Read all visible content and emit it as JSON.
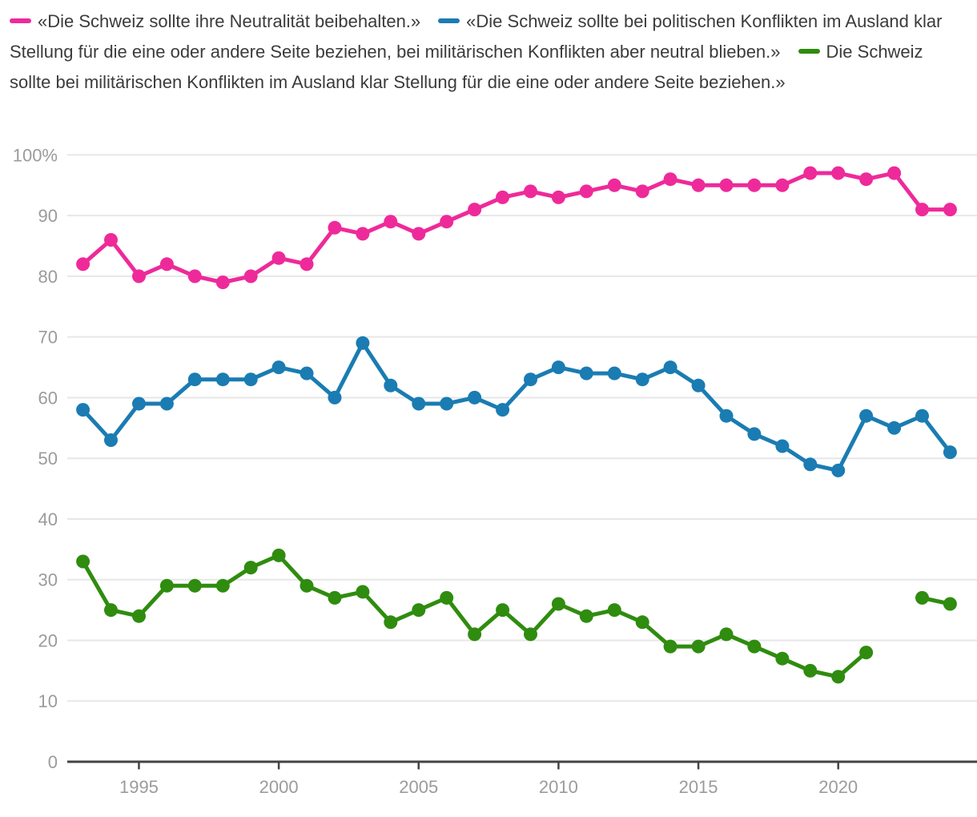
{
  "legend": {
    "items": [
      {
        "label": "«Die Schweiz sollte ihre Neutralität beibehalten.»",
        "color": "#ee2a9a"
      },
      {
        "label": "«Die Schweiz sollte bei politischen Konflikten im Ausland klar Stellung für die eine oder andere Seite beziehen, bei militärischen Konflikten aber neutral blieben.»",
        "color": "#1a7cb2"
      },
      {
        "label": "Die Schweiz sollte bei militärischen Konflikten im Ausland klar Stellung für die eine oder andere Seite beziehen.»",
        "color": "#2f8c0f"
      }
    ]
  },
  "chart_data": {
    "type": "line",
    "x": [
      1993,
      1994,
      1995,
      1996,
      1997,
      1998,
      1999,
      2000,
      2001,
      2002,
      2003,
      2004,
      2005,
      2006,
      2007,
      2008,
      2009,
      2010,
      2011,
      2012,
      2013,
      2014,
      2015,
      2016,
      2017,
      2018,
      2019,
      2020,
      2021,
      2022,
      2023,
      2024
    ],
    "series": [
      {
        "name": "«Die Schweiz sollte ihre Neutralität beibehalten.»",
        "color": "#ee2a9a",
        "values": [
          82,
          86,
          80,
          82,
          80,
          79,
          80,
          83,
          82,
          88,
          87,
          89,
          87,
          89,
          91,
          93,
          94,
          93,
          94,
          95,
          94,
          96,
          95,
          95,
          95,
          95,
          97,
          97,
          96,
          97,
          91,
          91
        ]
      },
      {
        "name": "«Die Schweiz sollte bei politischen Konflikten im Ausland klar Stellung für die eine oder andere Seite beziehen, bei militärischen Konflikten aber neutral blieben.»",
        "color": "#1a7cb2",
        "values": [
          58,
          53,
          59,
          59,
          63,
          63,
          63,
          65,
          64,
          60,
          69,
          62,
          59,
          59,
          60,
          58,
          63,
          65,
          64,
          64,
          63,
          65,
          62,
          57,
          54,
          52,
          49,
          48,
          57,
          55,
          57,
          51
        ]
      },
      {
        "name": "Die Schweiz sollte bei militärischen Konflikten im Ausland klar Stellung für die eine oder andere Seite beziehen.»",
        "color": "#2f8c0f",
        "values": [
          33,
          25,
          24,
          29,
          29,
          29,
          32,
          34,
          29,
          27,
          28,
          23,
          25,
          27,
          21,
          25,
          21,
          26,
          24,
          25,
          23,
          19,
          19,
          21,
          19,
          17,
          15,
          14,
          18,
          null,
          27,
          26
        ]
      }
    ],
    "title": "",
    "xlabel": "",
    "ylabel": "",
    "ylim": [
      0,
      100
    ],
    "yticks": [
      0,
      10,
      20,
      30,
      40,
      50,
      60,
      70,
      80,
      90,
      100
    ],
    "ytick_top_label": "100%",
    "xticks": [
      1995,
      2000,
      2005,
      2010,
      2015,
      2020
    ],
    "grid": true,
    "legend_position": "top",
    "grid_color": "#e7e7e7",
    "axis_color": "#444444",
    "tick_label_color": "#9b9b9b"
  }
}
